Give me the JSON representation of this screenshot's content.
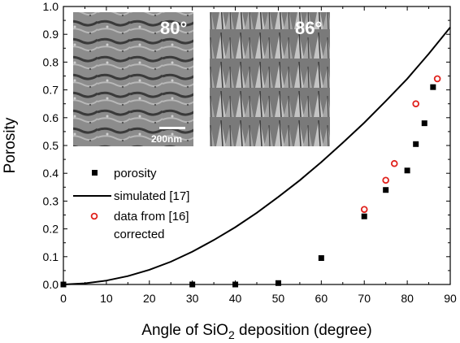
{
  "chart_data": {
    "type": "scatter",
    "xlabel_main": "Angle of SiO",
    "xlabel_sub": "2",
    "xlabel_rest": " deposition (degree)",
    "ylabel": "Porosity",
    "xlim": [
      0,
      90
    ],
    "ylim": [
      0,
      1.0
    ],
    "x_ticks": [
      "0",
      "10",
      "20",
      "30",
      "40",
      "50",
      "60",
      "70",
      "80",
      "90"
    ],
    "y_ticks": [
      "0.0",
      "0.1",
      "0.2",
      "0.3",
      "0.4",
      "0.5",
      "0.6",
      "0.7",
      "0.8",
      "0.9",
      "1.0"
    ],
    "grid": false,
    "legend_position": "left",
    "series": [
      {
        "name": "porosity",
        "marker": "filled-square",
        "color": "#000000",
        "points": [
          [
            0,
            0.0
          ],
          [
            30,
            0.0
          ],
          [
            40,
            0.0
          ],
          [
            50,
            0.005
          ],
          [
            60,
            0.095
          ],
          [
            70,
            0.245
          ],
          [
            75,
            0.34
          ],
          [
            80,
            0.41
          ],
          [
            82,
            0.505
          ],
          [
            84,
            0.58
          ],
          [
            86,
            0.71
          ]
        ]
      },
      {
        "name": "simulated [17]",
        "style": "line",
        "color": "#000000",
        "points": [
          [
            0,
            0.0
          ],
          [
            5,
            0.004
          ],
          [
            10,
            0.014
          ],
          [
            15,
            0.03
          ],
          [
            20,
            0.053
          ],
          [
            25,
            0.082
          ],
          [
            30,
            0.118
          ],
          [
            35,
            0.16
          ],
          [
            40,
            0.206
          ],
          [
            45,
            0.258
          ],
          [
            50,
            0.315
          ],
          [
            55,
            0.375
          ],
          [
            60,
            0.44
          ],
          [
            65,
            0.51
          ],
          [
            70,
            0.582
          ],
          [
            75,
            0.66
          ],
          [
            80,
            0.74
          ],
          [
            85,
            0.83
          ],
          [
            90,
            0.925
          ]
        ]
      },
      {
        "name": "data from [16]",
        "name_line2": "corrected",
        "marker": "open-circle",
        "color": "#e0201b",
        "points": [
          [
            70,
            0.27
          ],
          [
            75,
            0.375
          ],
          [
            77,
            0.435
          ],
          [
            82,
            0.65
          ],
          [
            87,
            0.74
          ]
        ]
      }
    ],
    "insets": [
      {
        "label": "80°",
        "scale_bar": "200nm"
      },
      {
        "label": "86°"
      }
    ]
  }
}
